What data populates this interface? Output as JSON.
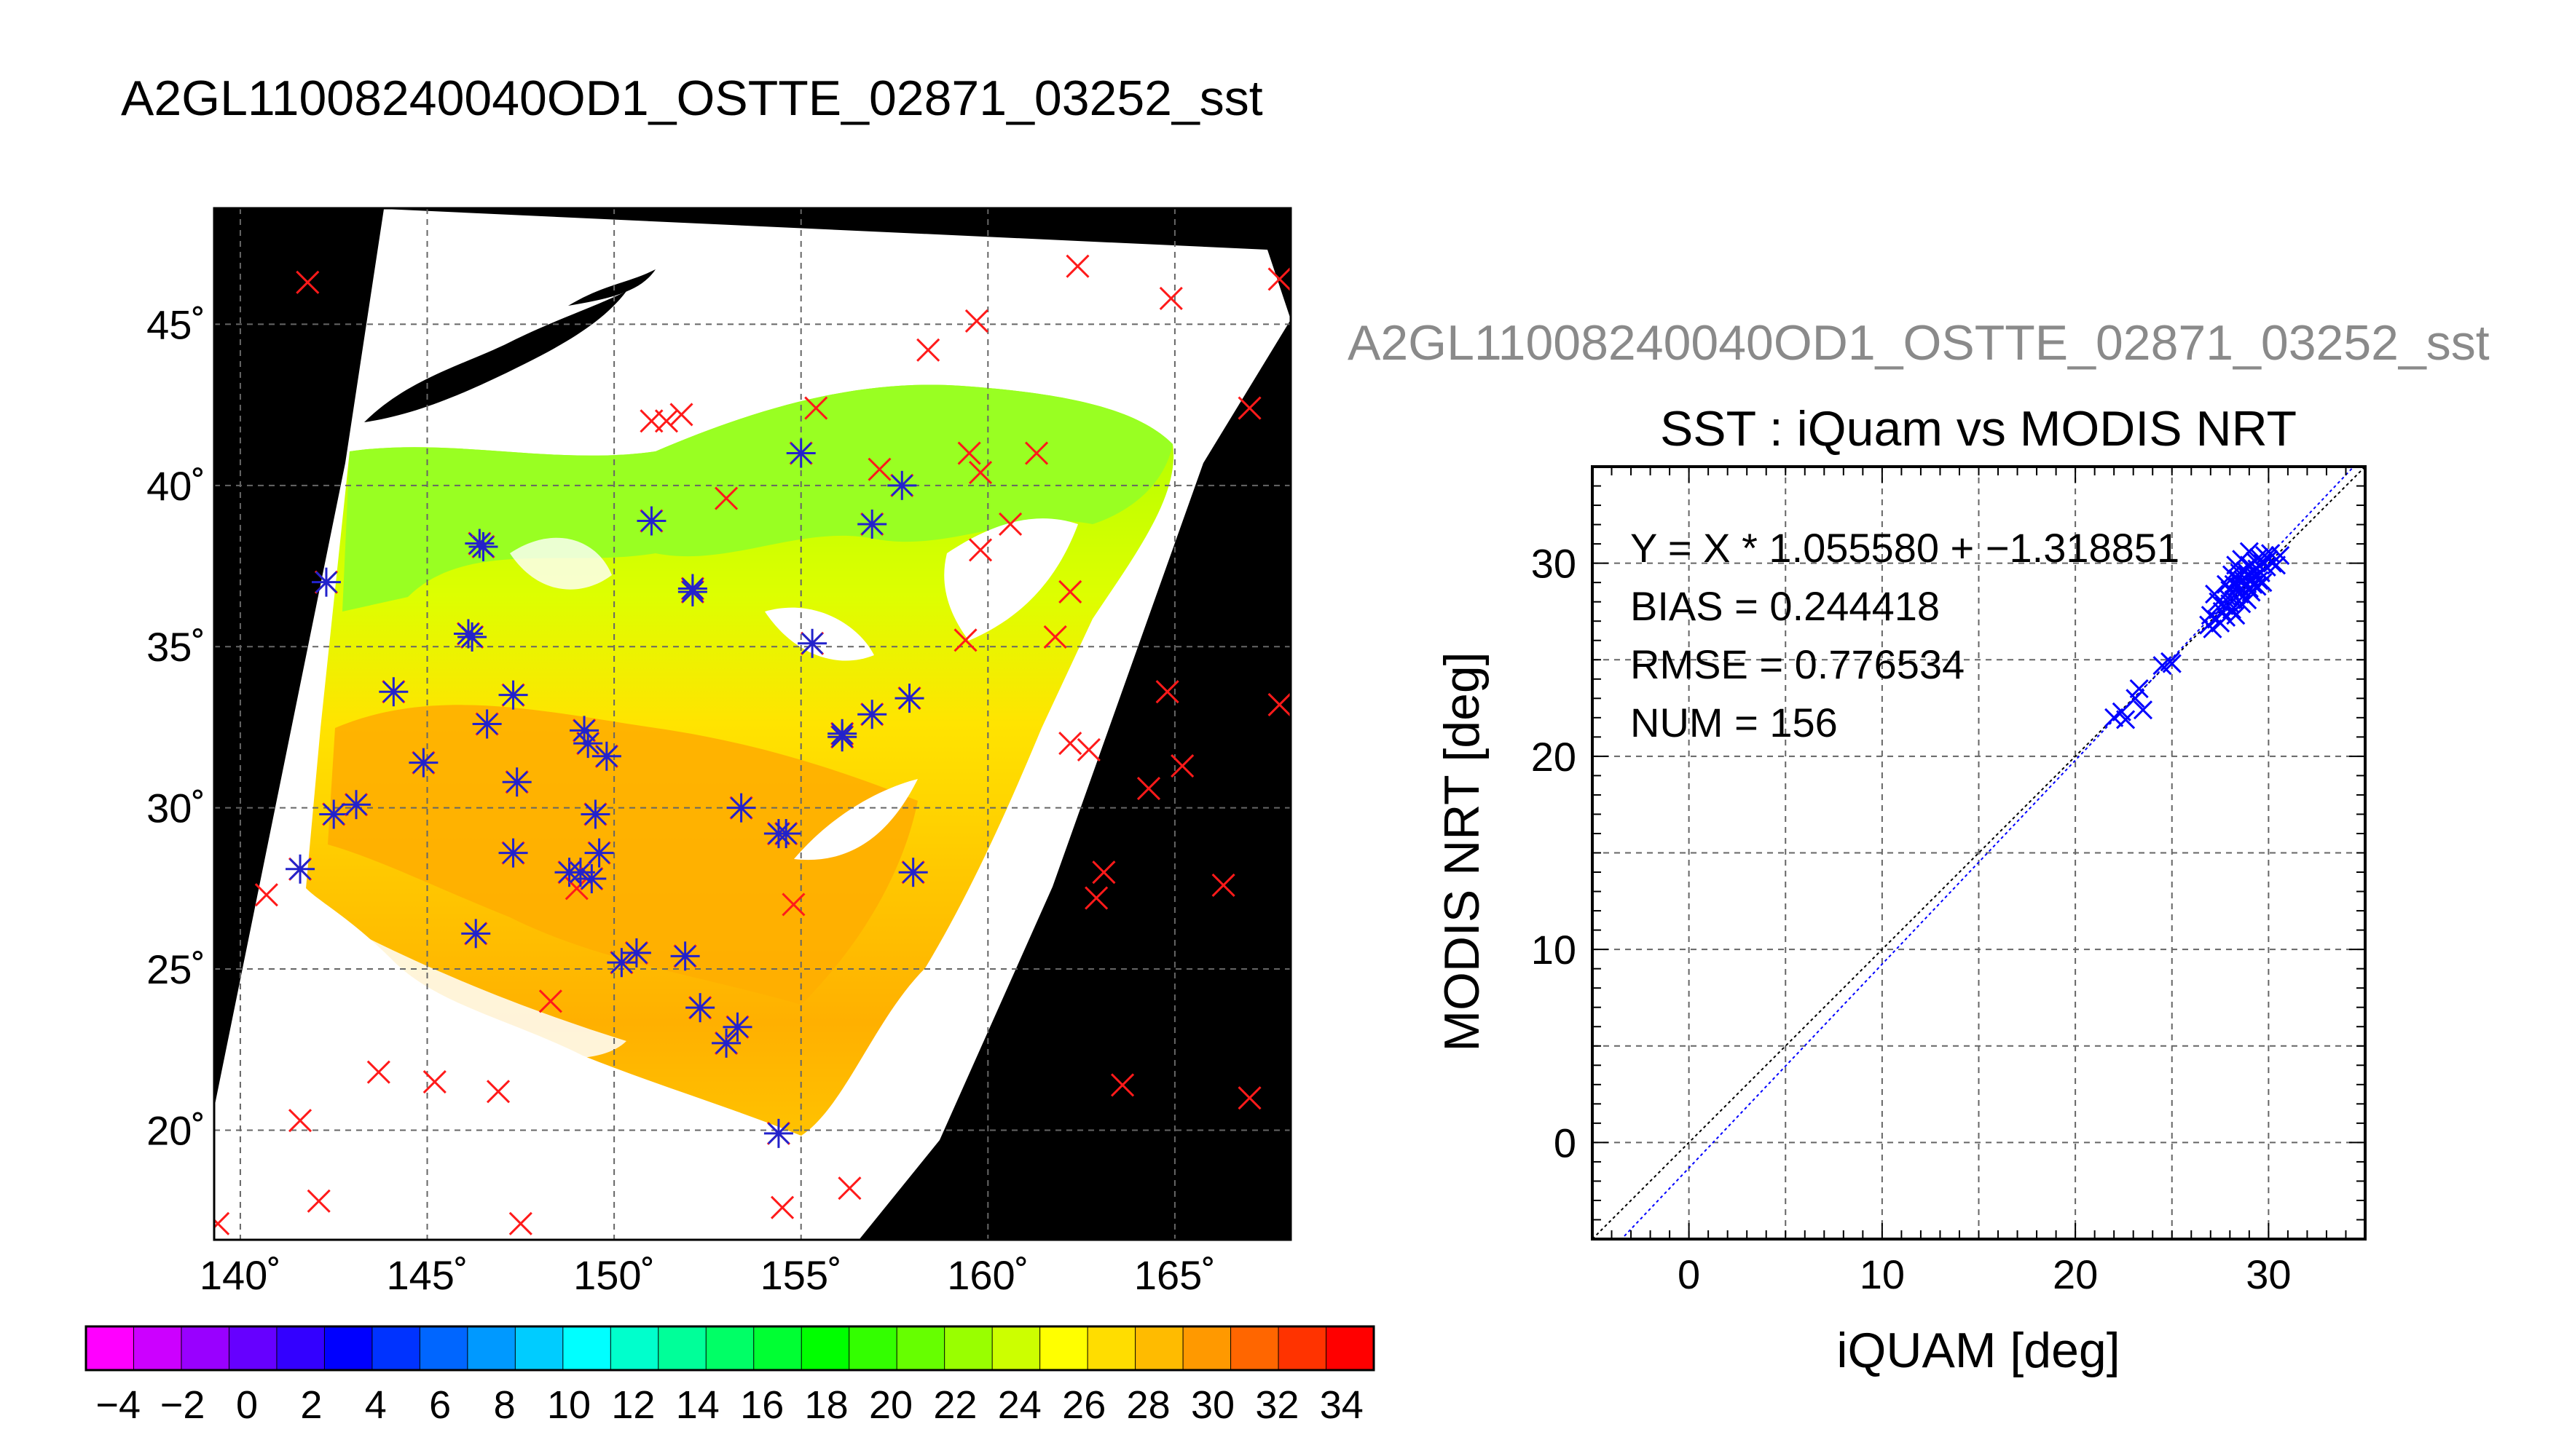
{
  "map": {
    "title": "A2GL11008240040OD1_OSTTE_02871_03252_sst",
    "lon_ticks": [
      140,
      145,
      150,
      155,
      160,
      165
    ],
    "lat_ticks": [
      20,
      25,
      30,
      35,
      40,
      45
    ],
    "lon_range": [
      139.3,
      168.1
    ],
    "lat_range": [
      16.6,
      48.6
    ],
    "degree_symbol": "˚",
    "colorbar_ticks": [
      "−4",
      "−2",
      "0",
      "2",
      "4",
      "6",
      "8",
      "10",
      "12",
      "14",
      "16",
      "18",
      "20",
      "22",
      "24",
      "26",
      "28",
      "30",
      "32",
      "34"
    ],
    "colorbar_range": [
      -5,
      35
    ],
    "colorbar_colors": [
      "#ff00ff",
      "#cc00ff",
      "#9900ff",
      "#6600ff",
      "#3300ff",
      "#0000ff",
      "#0033ff",
      "#0066ff",
      "#0099ff",
      "#00ccff",
      "#00ffff",
      "#00ffcc",
      "#00ff99",
      "#00ff66",
      "#00ff33",
      "#00ff00",
      "#33ff00",
      "#66ff00",
      "#99ff00",
      "#ccff00",
      "#ffff00",
      "#ffdd00",
      "#ffbb00",
      "#ff9900",
      "#ff6600",
      "#ff3300",
      "#ff0000"
    ],
    "matched_points": [
      [
        141.6,
        28.1
      ],
      [
        142.5,
        29.8
      ],
      [
        143.1,
        30.1
      ],
      [
        142.3,
        37.0
      ],
      [
        144.1,
        33.6
      ],
      [
        144.9,
        31.4
      ],
      [
        146.1,
        35.4
      ],
      [
        146.2,
        35.3
      ],
      [
        146.4,
        38.2
      ],
      [
        146.5,
        38.1
      ],
      [
        146.6,
        32.6
      ],
      [
        146.3,
        26.1
      ],
      [
        147.3,
        33.5
      ],
      [
        147.4,
        30.8
      ],
      [
        147.3,
        28.6
      ],
      [
        148.8,
        28.0
      ],
      [
        149.1,
        28.0
      ],
      [
        149.2,
        32.4
      ],
      [
        149.4,
        27.8
      ],
      [
        149.3,
        32.0
      ],
      [
        149.5,
        29.8
      ],
      [
        149.6,
        28.6
      ],
      [
        149.8,
        31.6
      ],
      [
        150.2,
        25.2
      ],
      [
        150.6,
        25.5
      ],
      [
        151.0,
        38.9
      ],
      [
        151.9,
        25.4
      ],
      [
        152.1,
        36.8
      ],
      [
        152.1,
        36.7
      ],
      [
        153.0,
        22.7
      ],
      [
        153.3,
        23.2
      ],
      [
        153.4,
        30.0
      ],
      [
        154.4,
        29.2
      ],
      [
        154.6,
        29.2
      ],
      [
        154.4,
        19.9
      ],
      [
        155.0,
        41.0
      ],
      [
        155.3,
        35.1
      ],
      [
        156.1,
        32.2
      ],
      [
        156.1,
        32.3
      ],
      [
        156.9,
        32.9
      ],
      [
        156.9,
        38.8
      ],
      [
        157.7,
        40.0
      ],
      [
        157.9,
        33.4
      ],
      [
        158.0,
        28.0
      ],
      [
        152.3,
        23.8
      ]
    ],
    "unmatched_points": [
      [
        141.8,
        46.3
      ],
      [
        141.6,
        20.3
      ],
      [
        142.1,
        17.8
      ],
      [
        140.7,
        27.3
      ],
      [
        139.4,
        17.1
      ],
      [
        143.7,
        21.8
      ],
      [
        145.2,
        21.5
      ],
      [
        146.9,
        21.2
      ],
      [
        147.5,
        17.1
      ],
      [
        148.3,
        24.0
      ],
      [
        149.0,
        27.5
      ],
      [
        151.0,
        42.0
      ],
      [
        151.4,
        42.0
      ],
      [
        151.8,
        42.2
      ],
      [
        153.0,
        39.6
      ],
      [
        154.5,
        17.6
      ],
      [
        154.8,
        27.0
      ],
      [
        155.4,
        42.4
      ],
      [
        156.3,
        18.2
      ],
      [
        157.1,
        40.5
      ],
      [
        158.4,
        44.2
      ],
      [
        159.4,
        35.2
      ],
      [
        159.5,
        41.0
      ],
      [
        159.7,
        45.1
      ],
      [
        159.8,
        40.4
      ],
      [
        159.8,
        38.0
      ],
      [
        160.6,
        38.8
      ],
      [
        161.3,
        41.0
      ],
      [
        161.8,
        35.3
      ],
      [
        162.2,
        36.7
      ],
      [
        162.4,
        46.8
      ],
      [
        162.2,
        32.0
      ],
      [
        162.7,
        31.8
      ],
      [
        163.1,
        28.0
      ],
      [
        162.9,
        27.2
      ],
      [
        163.6,
        21.4
      ],
      [
        164.3,
        30.6
      ],
      [
        164.8,
        33.6
      ],
      [
        164.9,
        45.8
      ],
      [
        165.2,
        31.3
      ],
      [
        166.3,
        27.6
      ],
      [
        167.0,
        21.0
      ],
      [
        167.0,
        42.4
      ],
      [
        167.8,
        46.4
      ],
      [
        167.8,
        33.2
      ]
    ]
  },
  "chart_data": {
    "type": "scatter",
    "file_title": "A2GL11008240040OD1_OSTTE_02871_03252_sst",
    "title": "SST : iQuam vs MODIS NRT",
    "xlabel": "iQUAM [deg]",
    "ylabel": "MODIS NRT [deg]",
    "xlim": [
      -5,
      35
    ],
    "ylim": [
      -5,
      35
    ],
    "x_ticks": [
      0,
      10,
      20,
      30
    ],
    "y_ticks": [
      0,
      10,
      20,
      30
    ],
    "grid": true,
    "stats": [
      "Y = X * 1.055580 + −1.318851",
      "BIAS = 0.244418",
      "RMSE = 0.776534",
      "NUM = 156"
    ],
    "fit_slope": 1.05558,
    "fit_intercept": -1.318851,
    "series": [
      {
        "marker": "x",
        "color": "#0000ff",
        "points": [
          [
            22.0,
            22.0
          ],
          [
            22.4,
            22.3
          ],
          [
            22.6,
            21.9
          ],
          [
            23.1,
            23.0
          ],
          [
            23.3,
            23.5
          ],
          [
            23.5,
            22.4
          ],
          [
            24.5,
            24.7
          ],
          [
            24.9,
            24.9
          ],
          [
            25.0,
            24.8
          ],
          [
            26.9,
            26.8
          ],
          [
            27.0,
            27.3
          ],
          [
            27.1,
            26.6
          ],
          [
            27.2,
            28.4
          ],
          [
            27.3,
            27.1
          ],
          [
            27.4,
            28.0
          ],
          [
            27.5,
            26.9
          ],
          [
            27.6,
            27.5
          ],
          [
            27.7,
            27.8
          ],
          [
            27.8,
            27.2
          ],
          [
            27.9,
            28.2
          ],
          [
            28.0,
            27.9
          ],
          [
            28.0,
            28.6
          ],
          [
            28.1,
            27.6
          ],
          [
            28.2,
            28.9
          ],
          [
            28.2,
            28.1
          ],
          [
            28.3,
            27.3
          ],
          [
            28.4,
            28.8
          ],
          [
            28.4,
            29.2
          ],
          [
            28.5,
            28.4
          ],
          [
            28.5,
            29.5
          ],
          [
            28.6,
            27.9
          ],
          [
            28.6,
            28.7
          ],
          [
            28.7,
            29.1
          ],
          [
            28.7,
            28.3
          ],
          [
            28.8,
            29.6
          ],
          [
            28.8,
            28.9
          ],
          [
            28.9,
            28.1
          ],
          [
            28.9,
            29.4
          ],
          [
            29.0,
            28.7
          ],
          [
            29.0,
            29.9
          ],
          [
            29.1,
            29.2
          ],
          [
            29.1,
            28.5
          ],
          [
            29.2,
            29.6
          ],
          [
            29.2,
            28.9
          ],
          [
            29.3,
            30.1
          ],
          [
            29.3,
            29.3
          ],
          [
            29.4,
            28.8
          ],
          [
            29.4,
            29.7
          ],
          [
            29.5,
            29.1
          ],
          [
            29.5,
            30.3
          ],
          [
            29.6,
            29.5
          ],
          [
            29.7,
            30.0
          ],
          [
            29.7,
            29.0
          ],
          [
            29.8,
            30.4
          ],
          [
            29.9,
            29.8
          ],
          [
            30.0,
            30.2
          ],
          [
            30.1,
            30.5
          ],
          [
            30.2,
            30.0
          ],
          [
            30.4,
            29.9
          ],
          [
            30.6,
            30.4
          ],
          [
            28.3,
            29.9
          ],
          [
            28.6,
            30.2
          ],
          [
            29.0,
            30.6
          ],
          [
            28.1,
            29.4
          ],
          [
            27.8,
            28.9
          ]
        ]
      }
    ]
  }
}
